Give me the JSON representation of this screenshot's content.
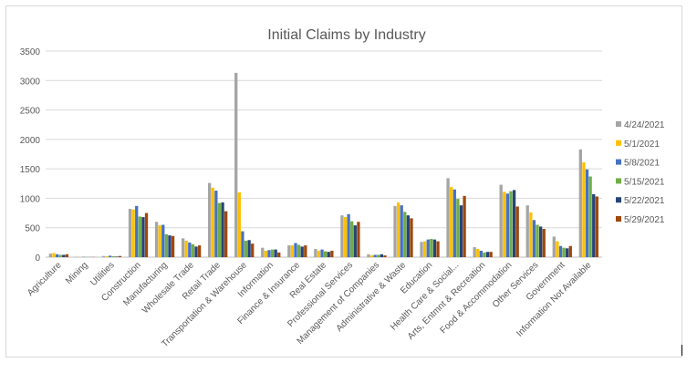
{
  "chart_data": {
    "type": "bar",
    "title": "Initial Claims by Industry",
    "xlabel": "",
    "ylabel": "",
    "ylim": [
      0,
      3500
    ],
    "yticks": [
      0,
      500,
      1000,
      1500,
      2000,
      2500,
      3000,
      3500
    ],
    "grid": true,
    "legend_position": "right",
    "categories": [
      "Agriculture",
      "Mining",
      "Utilities",
      "Construction",
      "Manufacturing",
      "Wholesale Trade",
      "Retail Trade",
      "Transportation & Warehouse",
      "Information",
      "Finance & Insurance",
      "Real Estate",
      "Professional Services",
      "Management of Companies",
      "Administrative & Waste",
      "Education",
      "Health Care & Social...",
      "Arts, Entmnt & Recreation",
      "Food & Accommodation",
      "Other Services",
      "Government",
      "Information Not Available"
    ],
    "series": [
      {
        "name": "4/24/2021",
        "color": "#a5a5a5",
        "values": [
          60,
          5,
          20,
          820,
          600,
          320,
          1260,
          3130,
          160,
          200,
          140,
          710,
          50,
          870,
          260,
          1340,
          170,
          1230,
          880,
          350,
          1830
        ]
      },
      {
        "name": "5/1/2021",
        "color": "#ffc000",
        "values": [
          70,
          3,
          15,
          810,
          540,
          280,
          1180,
          1100,
          110,
          200,
          110,
          680,
          30,
          930,
          270,
          1190,
          140,
          1110,
          760,
          270,
          1610
        ]
      },
      {
        "name": "5/8/2021",
        "color": "#4472c4",
        "values": [
          50,
          5,
          25,
          870,
          550,
          250,
          1130,
          440,
          120,
          240,
          130,
          730,
          40,
          880,
          300,
          1150,
          110,
          1080,
          630,
          190,
          1490
        ]
      },
      {
        "name": "5/15/2021",
        "color": "#70ad47",
        "values": [
          40,
          4,
          15,
          690,
          390,
          220,
          920,
          280,
          130,
          210,
          100,
          610,
          40,
          770,
          310,
          990,
          80,
          1120,
          550,
          160,
          1370
        ]
      },
      {
        "name": "5/22/2021",
        "color": "#264478",
        "values": [
          40,
          2,
          10,
          680,
          370,
          180,
          930,
          290,
          130,
          180,
          90,
          540,
          50,
          710,
          300,
          880,
          90,
          1140,
          520,
          150,
          1070
        ]
      },
      {
        "name": "5/29/2021",
        "color": "#9e480e",
        "values": [
          50,
          3,
          20,
          750,
          360,
          200,
          780,
          230,
          80,
          200,
          110,
          600,
          30,
          660,
          270,
          1040,
          90,
          860,
          480,
          190,
          1030
        ]
      }
    ]
  }
}
